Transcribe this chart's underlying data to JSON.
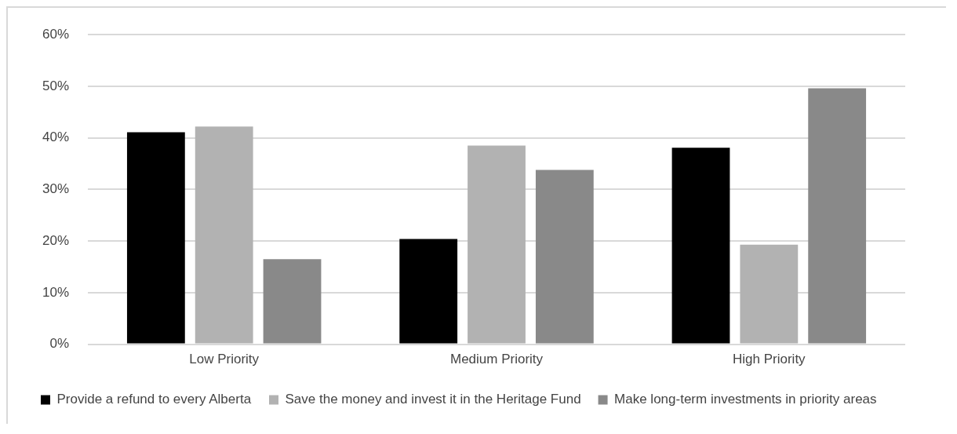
{
  "chart_data": {
    "type": "bar",
    "categories": [
      "Low Priority",
      "Medium Priority",
      "High Priority"
    ],
    "series": [
      {
        "name": "Provide a refund to every Alberta",
        "color": "#000000",
        "values": [
          41.1,
          20.4,
          38.1
        ]
      },
      {
        "name": "Save the money and invest it in the Heritage Fund",
        "color": "#b2b2b2",
        "values": [
          42.2,
          38.5,
          19.3
        ]
      },
      {
        "name": "Make long-term investments in priority areas",
        "color": "#898989",
        "values": [
          16.5,
          33.8,
          49.6
        ]
      }
    ],
    "ylim": [
      0,
      60
    ],
    "yticks": [
      {
        "value": 0,
        "label": "0%"
      },
      {
        "value": 10,
        "label": "10%"
      },
      {
        "value": 20,
        "label": "20%"
      },
      {
        "value": 30,
        "label": "30%"
      },
      {
        "value": 40,
        "label": "40%"
      },
      {
        "value": 50,
        "label": "50%"
      },
      {
        "value": 60,
        "label": "60%"
      }
    ],
    "grid": "y",
    "legend": "bottom"
  }
}
